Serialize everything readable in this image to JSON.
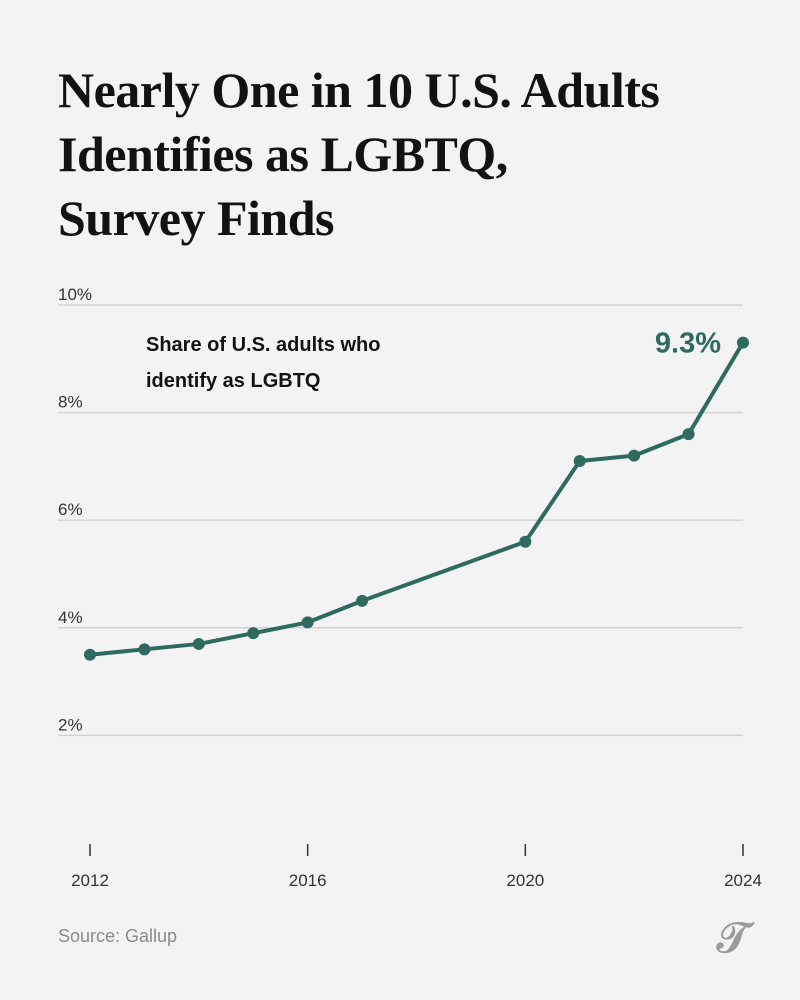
{
  "header": {
    "title_lines": [
      "Nearly One in 10 U.S. Adults",
      "Identifies as LGBTQ,",
      "Survey Finds"
    ]
  },
  "footer": {
    "source": "Source: Gallup"
  },
  "chart_data": {
    "type": "line",
    "subtitle_lines": [
      "Share of U.S. adults who",
      "identify as LGBTQ"
    ],
    "x": [
      2012,
      2013,
      2014,
      2015,
      2016,
      2017,
      2020,
      2021,
      2022,
      2023,
      2024
    ],
    "series": [
      {
        "values": [
          3.5,
          3.6,
          3.7,
          3.9,
          4.1,
          4.5,
          5.6,
          7.1,
          7.2,
          7.6,
          9.3
        ]
      }
    ],
    "xlim": [
      2012,
      2024
    ],
    "ylim": [
      0,
      10
    ],
    "x_ticks": [
      2012,
      2016,
      2020,
      2024
    ],
    "y_ticks": [
      2,
      4,
      6,
      8,
      10
    ],
    "y_tick_labels": [
      "2%",
      "4%",
      "6%",
      "8%",
      "10%"
    ],
    "end_label": "9.3%",
    "grid": true,
    "colors": {
      "line": "#2e6b5e",
      "grid": "#d3d3d3",
      "axis": "#333333"
    }
  }
}
